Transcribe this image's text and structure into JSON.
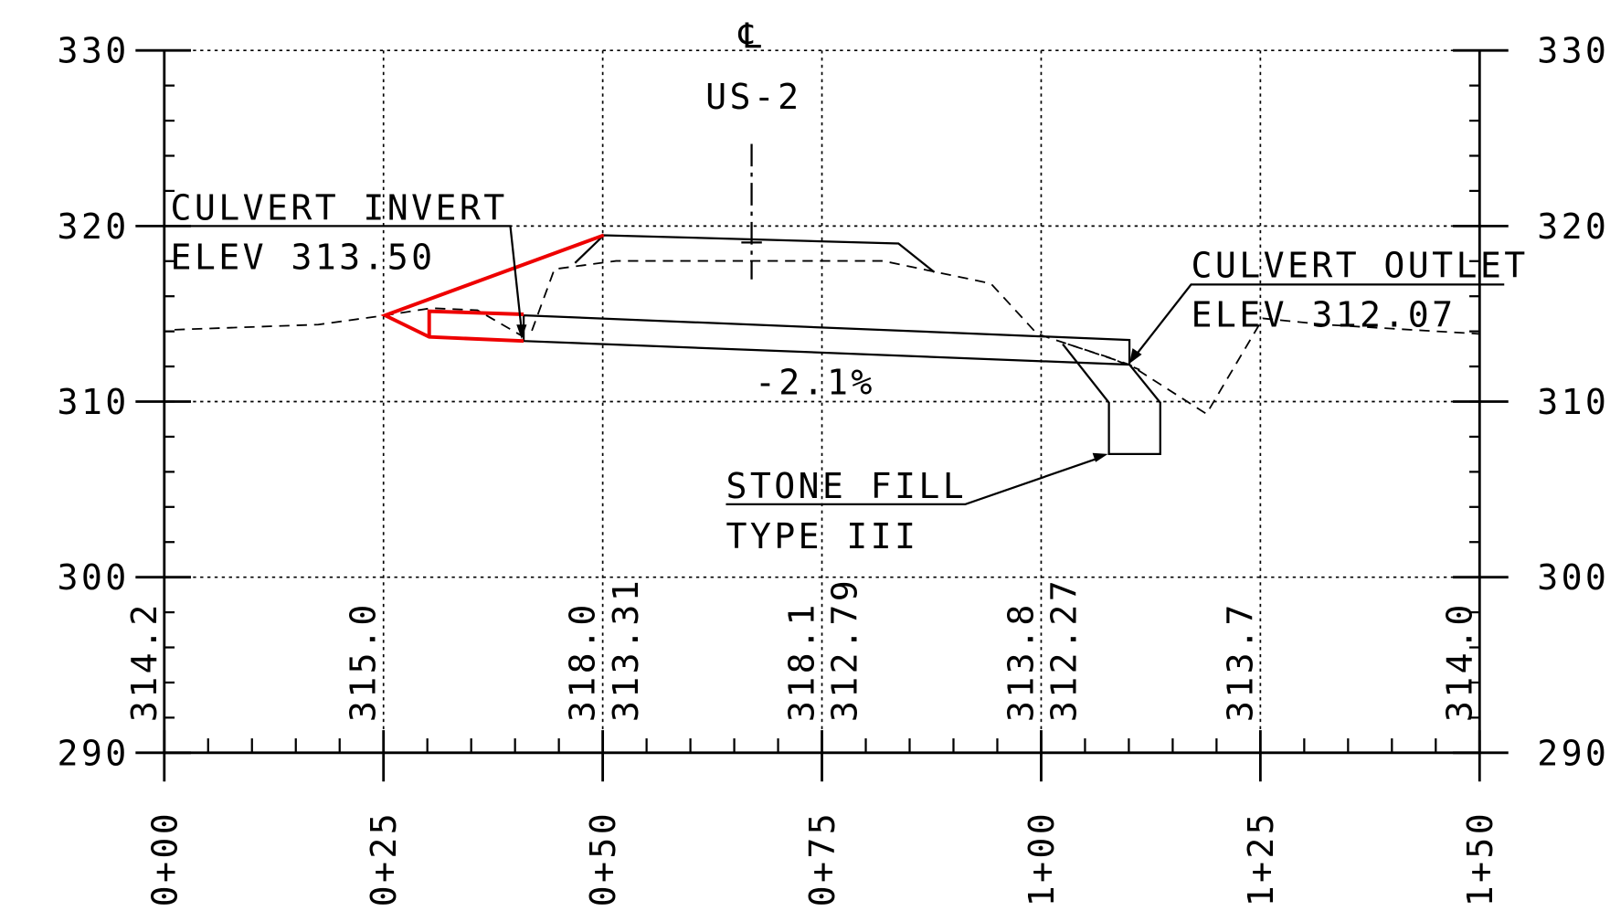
{
  "xlim": [
    0,
    150
  ],
  "ylim": [
    290,
    330
  ],
  "xticks": [
    {
      "value": 0,
      "label": "0+00"
    },
    {
      "value": 25,
      "label": "0+25"
    },
    {
      "value": 50,
      "label": "0+50"
    },
    {
      "value": 75,
      "label": "0+75"
    },
    {
      "value": 100,
      "label": "1+00"
    },
    {
      "value": 125,
      "label": "1+25"
    },
    {
      "value": 150,
      "label": "1+50"
    }
  ],
  "yticks": [
    290,
    300,
    310,
    320,
    330
  ],
  "centerline": {
    "symbol": "℄",
    "label": "US-2"
  },
  "annotations": {
    "invert": [
      "CULVERT INVERT",
      "ELEV 313.50"
    ],
    "outlet": [
      "CULVERT OUTLET",
      "ELEV 312.07"
    ],
    "stone": [
      "STONE FILL",
      "TYPE III"
    ],
    "grade": "-2.1%"
  },
  "elevations": [
    {
      "station": 0,
      "existing": "314.2"
    },
    {
      "station": 25,
      "existing": "315.0"
    },
    {
      "station": 50,
      "existing": "318.0",
      "proposed": "313.31"
    },
    {
      "station": 75,
      "existing": "318.1",
      "proposed": "312.79"
    },
    {
      "station": 100,
      "existing": "313.8",
      "proposed": "312.27"
    },
    {
      "station": 125,
      "existing": "313.7"
    },
    {
      "station": 150,
      "existing": "314.0"
    }
  ]
}
